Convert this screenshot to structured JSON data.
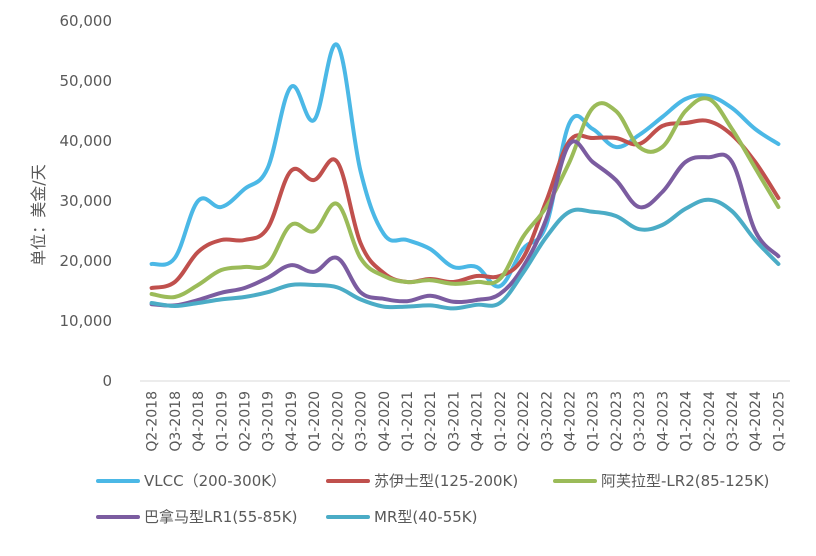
{
  "chart_data": {
    "type": "line",
    "ylabel": "单位：美金/天",
    "ylim": [
      0,
      60000
    ],
    "yticks": [
      0,
      10000,
      20000,
      30000,
      40000,
      50000,
      60000
    ],
    "ytick_labels": [
      "0",
      "10,000",
      "20,000",
      "30,000",
      "40,000",
      "50,000",
      "60,000"
    ],
    "grid": false,
    "legend_position": "bottom",
    "categories": [
      "Q2-2018",
      "Q3-2018",
      "Q4-2018",
      "Q1-2019",
      "Q2-2019",
      "Q3-2019",
      "Q4-2019",
      "Q1-2020",
      "Q2-2020",
      "Q3-2020",
      "Q4-2020",
      "Q1-2021",
      "Q2-2021",
      "Q3-2021",
      "Q4-2021",
      "Q1-2022",
      "Q2-2022",
      "Q3-2022",
      "Q4-2022",
      "Q1-2023",
      "Q2-2023",
      "Q3-2023",
      "Q4-2023",
      "Q1-2024",
      "Q2-2024",
      "Q3-2024",
      "Q4-2024",
      "Q1-2025"
    ],
    "series": [
      {
        "name": "VLCC（200-300K）",
        "color": "#4BB8E6",
        "values": [
          19500,
          20500,
          30000,
          29000,
          32000,
          35500,
          49000,
          43500,
          56000,
          35000,
          24500,
          23500,
          22000,
          19000,
          19000,
          15800,
          22000,
          26000,
          43000,
          42000,
          39000,
          41000,
          44000,
          47000,
          47500,
          45500,
          42000,
          39500
        ]
      },
      {
        "name": "苏伊士型(125-200K)",
        "color": "#C0504D",
        "values": [
          15500,
          16500,
          21500,
          23500,
          23500,
          25500,
          35000,
          33500,
          36500,
          23000,
          18000,
          16500,
          17000,
          16500,
          17500,
          17500,
          20500,
          30000,
          40000,
          40500,
          40500,
          39500,
          42500,
          43000,
          43300,
          41000,
          36500,
          30500
        ]
      },
      {
        "name": "阿芙拉型-LR2(85-125K)",
        "color": "#9BBB59",
        "values": [
          14500,
          14000,
          16000,
          18500,
          19000,
          19500,
          26000,
          25000,
          29500,
          20500,
          17500,
          16500,
          16800,
          16200,
          16500,
          17000,
          24000,
          29000,
          36500,
          45500,
          45000,
          39000,
          39000,
          45000,
          47000,
          42000,
          35500,
          29000
        ]
      },
      {
        "name": "巴拿马型LR1(55-85K)",
        "color": "#7B5CA0",
        "values": [
          12800,
          12600,
          13500,
          14700,
          15500,
          17200,
          19300,
          18200,
          20500,
          14800,
          13700,
          13300,
          14200,
          13200,
          13500,
          14500,
          19000,
          27000,
          39500,
          36500,
          33500,
          29000,
          31500,
          36500,
          37300,
          36500,
          25000,
          20800
        ]
      },
      {
        "name": "MR型(40-55K)",
        "color": "#4BACC6",
        "values": [
          13000,
          12500,
          13000,
          13600,
          14000,
          14800,
          16000,
          16000,
          15600,
          13600,
          12400,
          12400,
          12600,
          12100,
          12700,
          13000,
          18000,
          24000,
          28200,
          28200,
          27500,
          25300,
          26000,
          28700,
          30200,
          28300,
          23500,
          19500
        ]
      }
    ]
  }
}
